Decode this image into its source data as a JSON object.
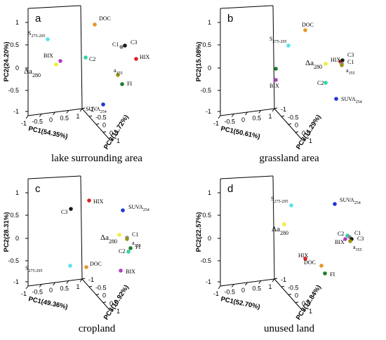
{
  "chart_data": [
    {
      "type": "scatter",
      "panel": "a",
      "caption": "lake surrounding area",
      "xlabel": "PC1(54.35%)",
      "ylabel": "PC2(24.20%)",
      "zlabel": "PC3(11.72%)",
      "yticks": [
        "1",
        "0.5",
        "0",
        "-0.5",
        "-1"
      ],
      "xticks": [
        "-1",
        "-0.5",
        "0",
        "0.5",
        "1"
      ],
      "zticks": [
        "-1",
        "-0.5",
        "0",
        "0.5",
        "1"
      ],
      "points": [
        {
          "label": "DOC",
          "color": "#e8952c"
        },
        {
          "label": "S",
          "sub": "275-295",
          "color": "#55e3ee"
        },
        {
          "label": "C1",
          "color": "#8a8a8a"
        },
        {
          "label": "C3",
          "color": "#1a1a1a"
        },
        {
          "label": "HIX",
          "color": "#e02020"
        },
        {
          "label": "C2",
          "color": "#2fd3a9"
        },
        {
          "label": "BIX",
          "color": "#b23cc2"
        },
        {
          "label": "Δa",
          "sub": "280",
          "color": "#f2ec38",
          "big": true
        },
        {
          "label": "a",
          "sub": "355",
          "color": "#9c9413"
        },
        {
          "label": "FI",
          "color": "#1f7a2e"
        },
        {
          "label": "SUVA",
          "sub": "254",
          "color": "#1e35d8"
        }
      ]
    },
    {
      "type": "scatter",
      "panel": "b",
      "caption": "grassland area",
      "xlabel": "PC1(50.61%)",
      "ylabel": "PC2(15.08%)",
      "zlabel": "PC3(11.29%)",
      "yticks": [
        "1",
        "0.5",
        "0",
        "-0.5",
        "-1"
      ],
      "xticks": [
        "-1",
        "-0.5",
        "0",
        "0.5",
        "1"
      ],
      "zticks": [
        "-1",
        "-0.5",
        "0",
        "0.5",
        "1"
      ],
      "points": [
        {
          "label": "DOC",
          "color": "#e8952c"
        },
        {
          "label": "S",
          "sub": "275-295",
          "color": "#55e3ee"
        },
        {
          "label": "HIX",
          "color": "#e02020"
        },
        {
          "label": "C3",
          "color": "#1a1a1a"
        },
        {
          "label": "C1",
          "color": "#8a8a8a"
        },
        {
          "label": "Δa",
          "sub": "280",
          "color": "#f2ec38",
          "big": true
        },
        {
          "label": "a",
          "sub": "355",
          "color": "#9c9413"
        },
        {
          "label": "",
          "color": "#1f7a2e"
        },
        {
          "label": "BIX",
          "color": "#b23cc2"
        },
        {
          "label": "C2",
          "color": "#2fd3a9"
        },
        {
          "label": "SUVA",
          "sub": "254",
          "color": "#1e35d8"
        }
      ]
    },
    {
      "type": "scatter",
      "panel": "c",
      "caption": "cropland",
      "xlabel": "PC1(49.36%)",
      "ylabel": "PC2(28.31%)",
      "zlabel": "PC3(10.92%)",
      "yticks": [
        "1",
        "0.5",
        "0",
        "-0.5",
        "-1"
      ],
      "xticks": [
        "-1",
        "-0.5",
        "0",
        "0.5",
        "1"
      ],
      "zticks": [
        "-1",
        "-0.5",
        "0",
        "0.5",
        "1"
      ],
      "points": [
        {
          "label": "HIX",
          "color": "#e02020"
        },
        {
          "label": "C3",
          "color": "#1a1a1a"
        },
        {
          "label": "SUVA",
          "sub": "254",
          "color": "#1e35d8"
        },
        {
          "label": "Δa",
          "sub": "280",
          "color": "#f2ec38",
          "big": true
        },
        {
          "label": "C1",
          "color": "#8a8a8a"
        },
        {
          "label": "a",
          "sub": "355",
          "color": "#9c9413"
        },
        {
          "label": "FI",
          "color": "#1f7a2e"
        },
        {
          "label": "C2",
          "color": "#2fd3a9"
        },
        {
          "label": "S",
          "sub": "275-295",
          "color": "#55e3ee"
        },
        {
          "label": "DOC",
          "color": "#e8952c"
        },
        {
          "label": "BIX",
          "color": "#b23cc2"
        }
      ]
    },
    {
      "type": "scatter",
      "panel": "d",
      "caption": "unused land",
      "xlabel": "PC1(52.70%)",
      "ylabel": "PC2(22.57%)",
      "zlabel": "PC3(12.84%)",
      "yticks": [
        "1",
        "0.5",
        "0",
        "-0.5",
        "-1"
      ],
      "xticks": [
        "-1",
        "-0.5",
        "0",
        "0.5",
        "1"
      ],
      "zticks": [
        "-1",
        "-0.5",
        "0",
        "0.5",
        "1"
      ],
      "points": [
        {
          "label": "S",
          "sub": "275-295",
          "color": "#55e3ee"
        },
        {
          "label": "SUVA",
          "sub": "254",
          "color": "#1e35d8"
        },
        {
          "label": "Δa",
          "sub": "280",
          "color": "#f2ec38",
          "big": true
        },
        {
          "label": "C2",
          "color": "#2fd3a9"
        },
        {
          "label": "C1",
          "color": "#8a8a8a"
        },
        {
          "label": "C3",
          "color": "#1a1a1a"
        },
        {
          "label": "BIX",
          "color": "#b23cc2"
        },
        {
          "label": "a",
          "sub": "355",
          "color": "#9c9413"
        },
        {
          "label": "HIX",
          "color": "#e02020"
        },
        {
          "label": "DOC",
          "color": "#e8952c"
        },
        {
          "label": "FI",
          "color": "#1f7a2e"
        }
      ]
    }
  ]
}
